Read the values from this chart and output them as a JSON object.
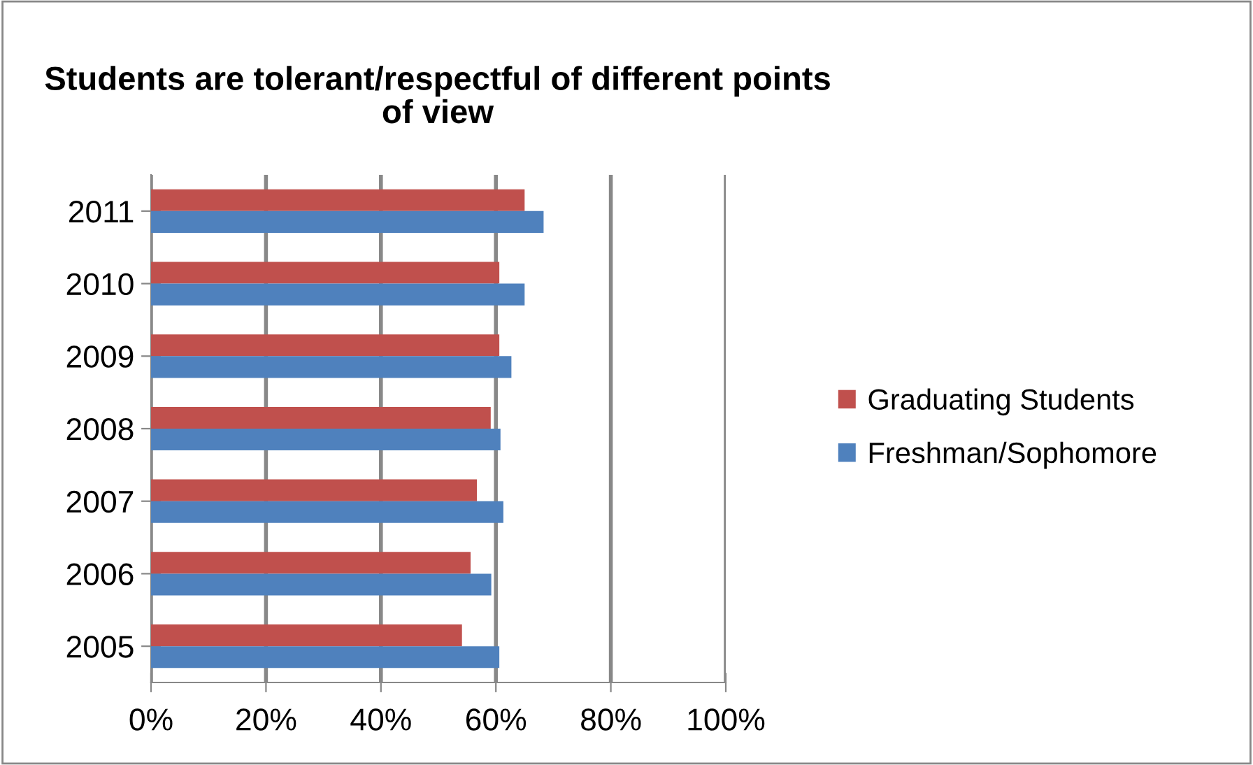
{
  "chart_data": {
    "type": "bar",
    "orientation": "horizontal",
    "title": "Students are tolerant/respectful of different points\nof view",
    "categories": [
      "2011",
      "2010",
      "2009",
      "2008",
      "2007",
      "2006",
      "2005"
    ],
    "series": [
      {
        "name": "Graduating Students",
        "color": "#c0504d",
        "values": [
          65,
          60.6,
          60.6,
          59.1,
          56.7,
          55.6,
          54.1
        ]
      },
      {
        "name": "Freshman/Sophomore",
        "color": "#4f81bd",
        "values": [
          68.3,
          65,
          62.7,
          60.8,
          61.3,
          59.2,
          60.6
        ]
      }
    ],
    "xlim": [
      0,
      100
    ],
    "xticks": [
      {
        "value": 0,
        "label": "0%"
      },
      {
        "value": 20,
        "label": "20%"
      },
      {
        "value": 40,
        "label": "40%"
      },
      {
        "value": 60,
        "label": "60%"
      },
      {
        "value": 80,
        "label": "80%"
      },
      {
        "value": 100,
        "label": "100%"
      }
    ],
    "grid": "x",
    "legend": "right"
  }
}
